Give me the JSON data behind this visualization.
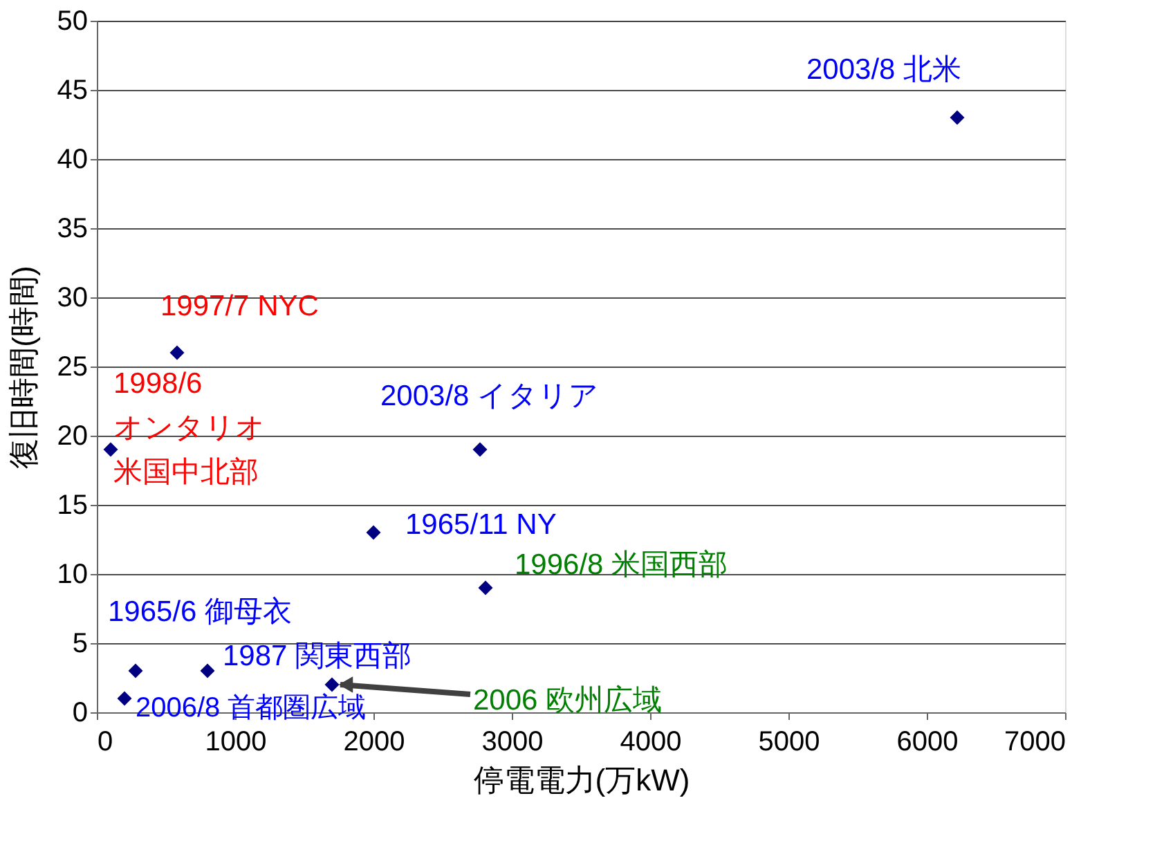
{
  "chart_data": {
    "type": "scatter",
    "xlabel": "停電電力(万kW)",
    "ylabel": "復旧時間(時間)",
    "x": [
      100,
      580,
      200,
      280,
      800,
      1700,
      2000,
      2770,
      2810,
      6220
    ],
    "series": [
      {
        "color": "#000080",
        "values": [
          19,
          26,
          1,
          3,
          3,
          2,
          13,
          19,
          9,
          43
        ]
      }
    ],
    "marker": "diamond",
    "xlim": [
      0,
      7000
    ],
    "xticks": [
      0,
      1000,
      2000,
      3000,
      4000,
      5000,
      6000,
      7000
    ],
    "ylim": [
      0,
      50
    ],
    "yticks": [
      0,
      5,
      10,
      15,
      20,
      25,
      30,
      35,
      40,
      45,
      50
    ],
    "grid": "y",
    "annotations": [
      {
        "text": "1998/6 オンタリオ米国中北部",
        "x": 100,
        "y": 19
      },
      {
        "text": "1997/7 NYC",
        "x": 580,
        "y": 26
      },
      {
        "text": "2006/8  首都圏広域",
        "x": 200,
        "y": 1
      },
      {
        "text": "1965/6  御母衣",
        "x": 280,
        "y": 3
      },
      {
        "text": "1987  関東西部",
        "x": 800,
        "y": 3
      },
      {
        "text": "2006  欧州広域",
        "x": 1700,
        "y": 2
      },
      {
        "text": "1965/11 NY",
        "x": 2000,
        "y": 13
      },
      {
        "text": "2003/8  イタリア",
        "x": 2770,
        "y": 19
      },
      {
        "text": "1996/8  米国西部",
        "x": 2810,
        "y": 9
      },
      {
        "text": "2003/8  北米",
        "x": 6220,
        "y": 43
      }
    ]
  }
}
